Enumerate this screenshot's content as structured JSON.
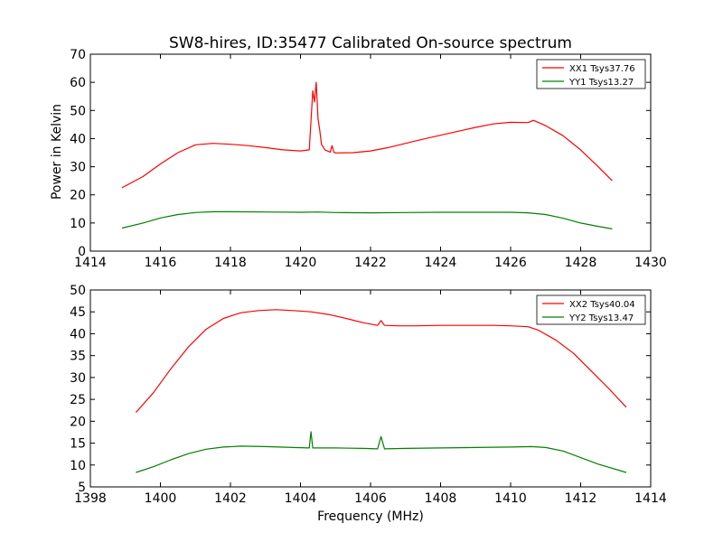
{
  "chart_data": [
    {
      "type": "line",
      "title": "SW8-hires, ID:35477 Calibrated On-source spectrum",
      "xlabel": "",
      "ylabel": "Power in Kelvin",
      "xlim": [
        1414,
        1430
      ],
      "ylim": [
        0,
        70
      ],
      "xticks": [
        "1414",
        "1416",
        "1418",
        "1420",
        "1422",
        "1424",
        "1426",
        "1428",
        "1430"
      ],
      "yticks": [
        "0",
        "10",
        "20",
        "30",
        "40",
        "50",
        "60",
        "70"
      ],
      "legend_position": "top-right",
      "grid": false,
      "series": [
        {
          "name": "XX1 Tsys37.76",
          "color": "#ff0000",
          "x": [
            1414.9,
            1415.5,
            1416.0,
            1416.5,
            1417.0,
            1417.5,
            1418.0,
            1418.5,
            1419.0,
            1419.5,
            1420.0,
            1420.25,
            1420.35,
            1420.4,
            1420.45,
            1420.5,
            1420.55,
            1420.6,
            1420.7,
            1420.85,
            1420.9,
            1420.95,
            1421.0,
            1421.5,
            1422.0,
            1422.5,
            1423.0,
            1423.5,
            1424.0,
            1424.5,
            1425.0,
            1425.5,
            1426.0,
            1426.5,
            1426.65,
            1427.0,
            1427.5,
            1428.0,
            1428.5,
            1428.9
          ],
          "y": [
            22.5,
            26.5,
            31.0,
            35.0,
            37.8,
            38.3,
            38.0,
            37.5,
            36.8,
            36.0,
            35.6,
            36.0,
            57.0,
            53.0,
            60.0,
            47.0,
            43.0,
            38.0,
            36.0,
            35.2,
            37.5,
            35.2,
            34.9,
            35.0,
            35.6,
            36.8,
            38.3,
            39.8,
            41.2,
            42.6,
            44.0,
            45.2,
            45.8,
            45.7,
            46.5,
            44.6,
            41.0,
            36.0,
            30.0,
            25.0
          ]
        },
        {
          "name": "YY1 Tsys13.27",
          "color": "#008000",
          "x": [
            1414.9,
            1415.5,
            1416.0,
            1416.5,
            1417.0,
            1417.5,
            1418.0,
            1419.0,
            1420.0,
            1420.5,
            1421.0,
            1422.0,
            1423.0,
            1424.0,
            1425.0,
            1426.0,
            1426.5,
            1427.0,
            1427.5,
            1428.0,
            1428.5,
            1428.9
          ],
          "y": [
            8.2,
            10.0,
            11.8,
            13.0,
            13.7,
            14.0,
            14.0,
            13.9,
            13.8,
            13.9,
            13.7,
            13.6,
            13.7,
            13.8,
            13.8,
            13.8,
            13.6,
            13.0,
            11.7,
            10.0,
            8.8,
            7.9
          ]
        }
      ]
    },
    {
      "type": "line",
      "title": "",
      "xlabel": "Frequency (MHz)",
      "ylabel": "",
      "xlim": [
        1398,
        1414
      ],
      "ylim": [
        5,
        50
      ],
      "xticks": [
        "1398",
        "1400",
        "1402",
        "1404",
        "1406",
        "1408",
        "1410",
        "1412",
        "1414"
      ],
      "yticks": [
        "5",
        "10",
        "15",
        "20",
        "25",
        "30",
        "35",
        "40",
        "45",
        "50"
      ],
      "legend_position": "top-right",
      "grid": false,
      "series": [
        {
          "name": "XX2 Tsys40.04",
          "color": "#ff0000",
          "x": [
            1399.3,
            1399.8,
            1400.3,
            1400.8,
            1401.3,
            1401.8,
            1402.3,
            1402.8,
            1403.3,
            1403.8,
            1404.3,
            1404.8,
            1405.3,
            1405.8,
            1406.2,
            1406.3,
            1406.4,
            1406.8,
            1407.3,
            1408.0,
            1408.8,
            1409.5,
            1410.0,
            1410.5,
            1410.8,
            1411.3,
            1411.8,
            1412.3,
            1412.8,
            1413.3
          ],
          "y": [
            22.0,
            26.5,
            32.0,
            37.0,
            41.0,
            43.5,
            44.8,
            45.3,
            45.5,
            45.3,
            45.0,
            44.4,
            43.5,
            42.5,
            41.9,
            43.0,
            41.9,
            41.8,
            41.8,
            41.9,
            41.9,
            41.9,
            41.8,
            41.6,
            40.8,
            38.5,
            35.5,
            31.5,
            27.5,
            23.2
          ]
        },
        {
          "name": "YY2 Tsys13.47",
          "color": "#008000",
          "x": [
            1399.3,
            1399.8,
            1400.3,
            1400.8,
            1401.3,
            1401.8,
            1402.3,
            1403.0,
            1403.8,
            1404.25,
            1404.3,
            1404.35,
            1405.0,
            1405.8,
            1406.2,
            1406.3,
            1406.4,
            1407.0,
            1408.0,
            1409.0,
            1410.0,
            1410.6,
            1411.0,
            1411.5,
            1412.0,
            1412.5,
            1413.3
          ],
          "y": [
            8.3,
            9.6,
            11.2,
            12.6,
            13.6,
            14.1,
            14.3,
            14.2,
            14.0,
            13.9,
            17.6,
            13.9,
            13.9,
            13.8,
            13.7,
            16.5,
            13.7,
            13.8,
            13.9,
            14.0,
            14.1,
            14.2,
            14.0,
            13.2,
            11.7,
            10.2,
            8.3
          ]
        }
      ]
    }
  ]
}
